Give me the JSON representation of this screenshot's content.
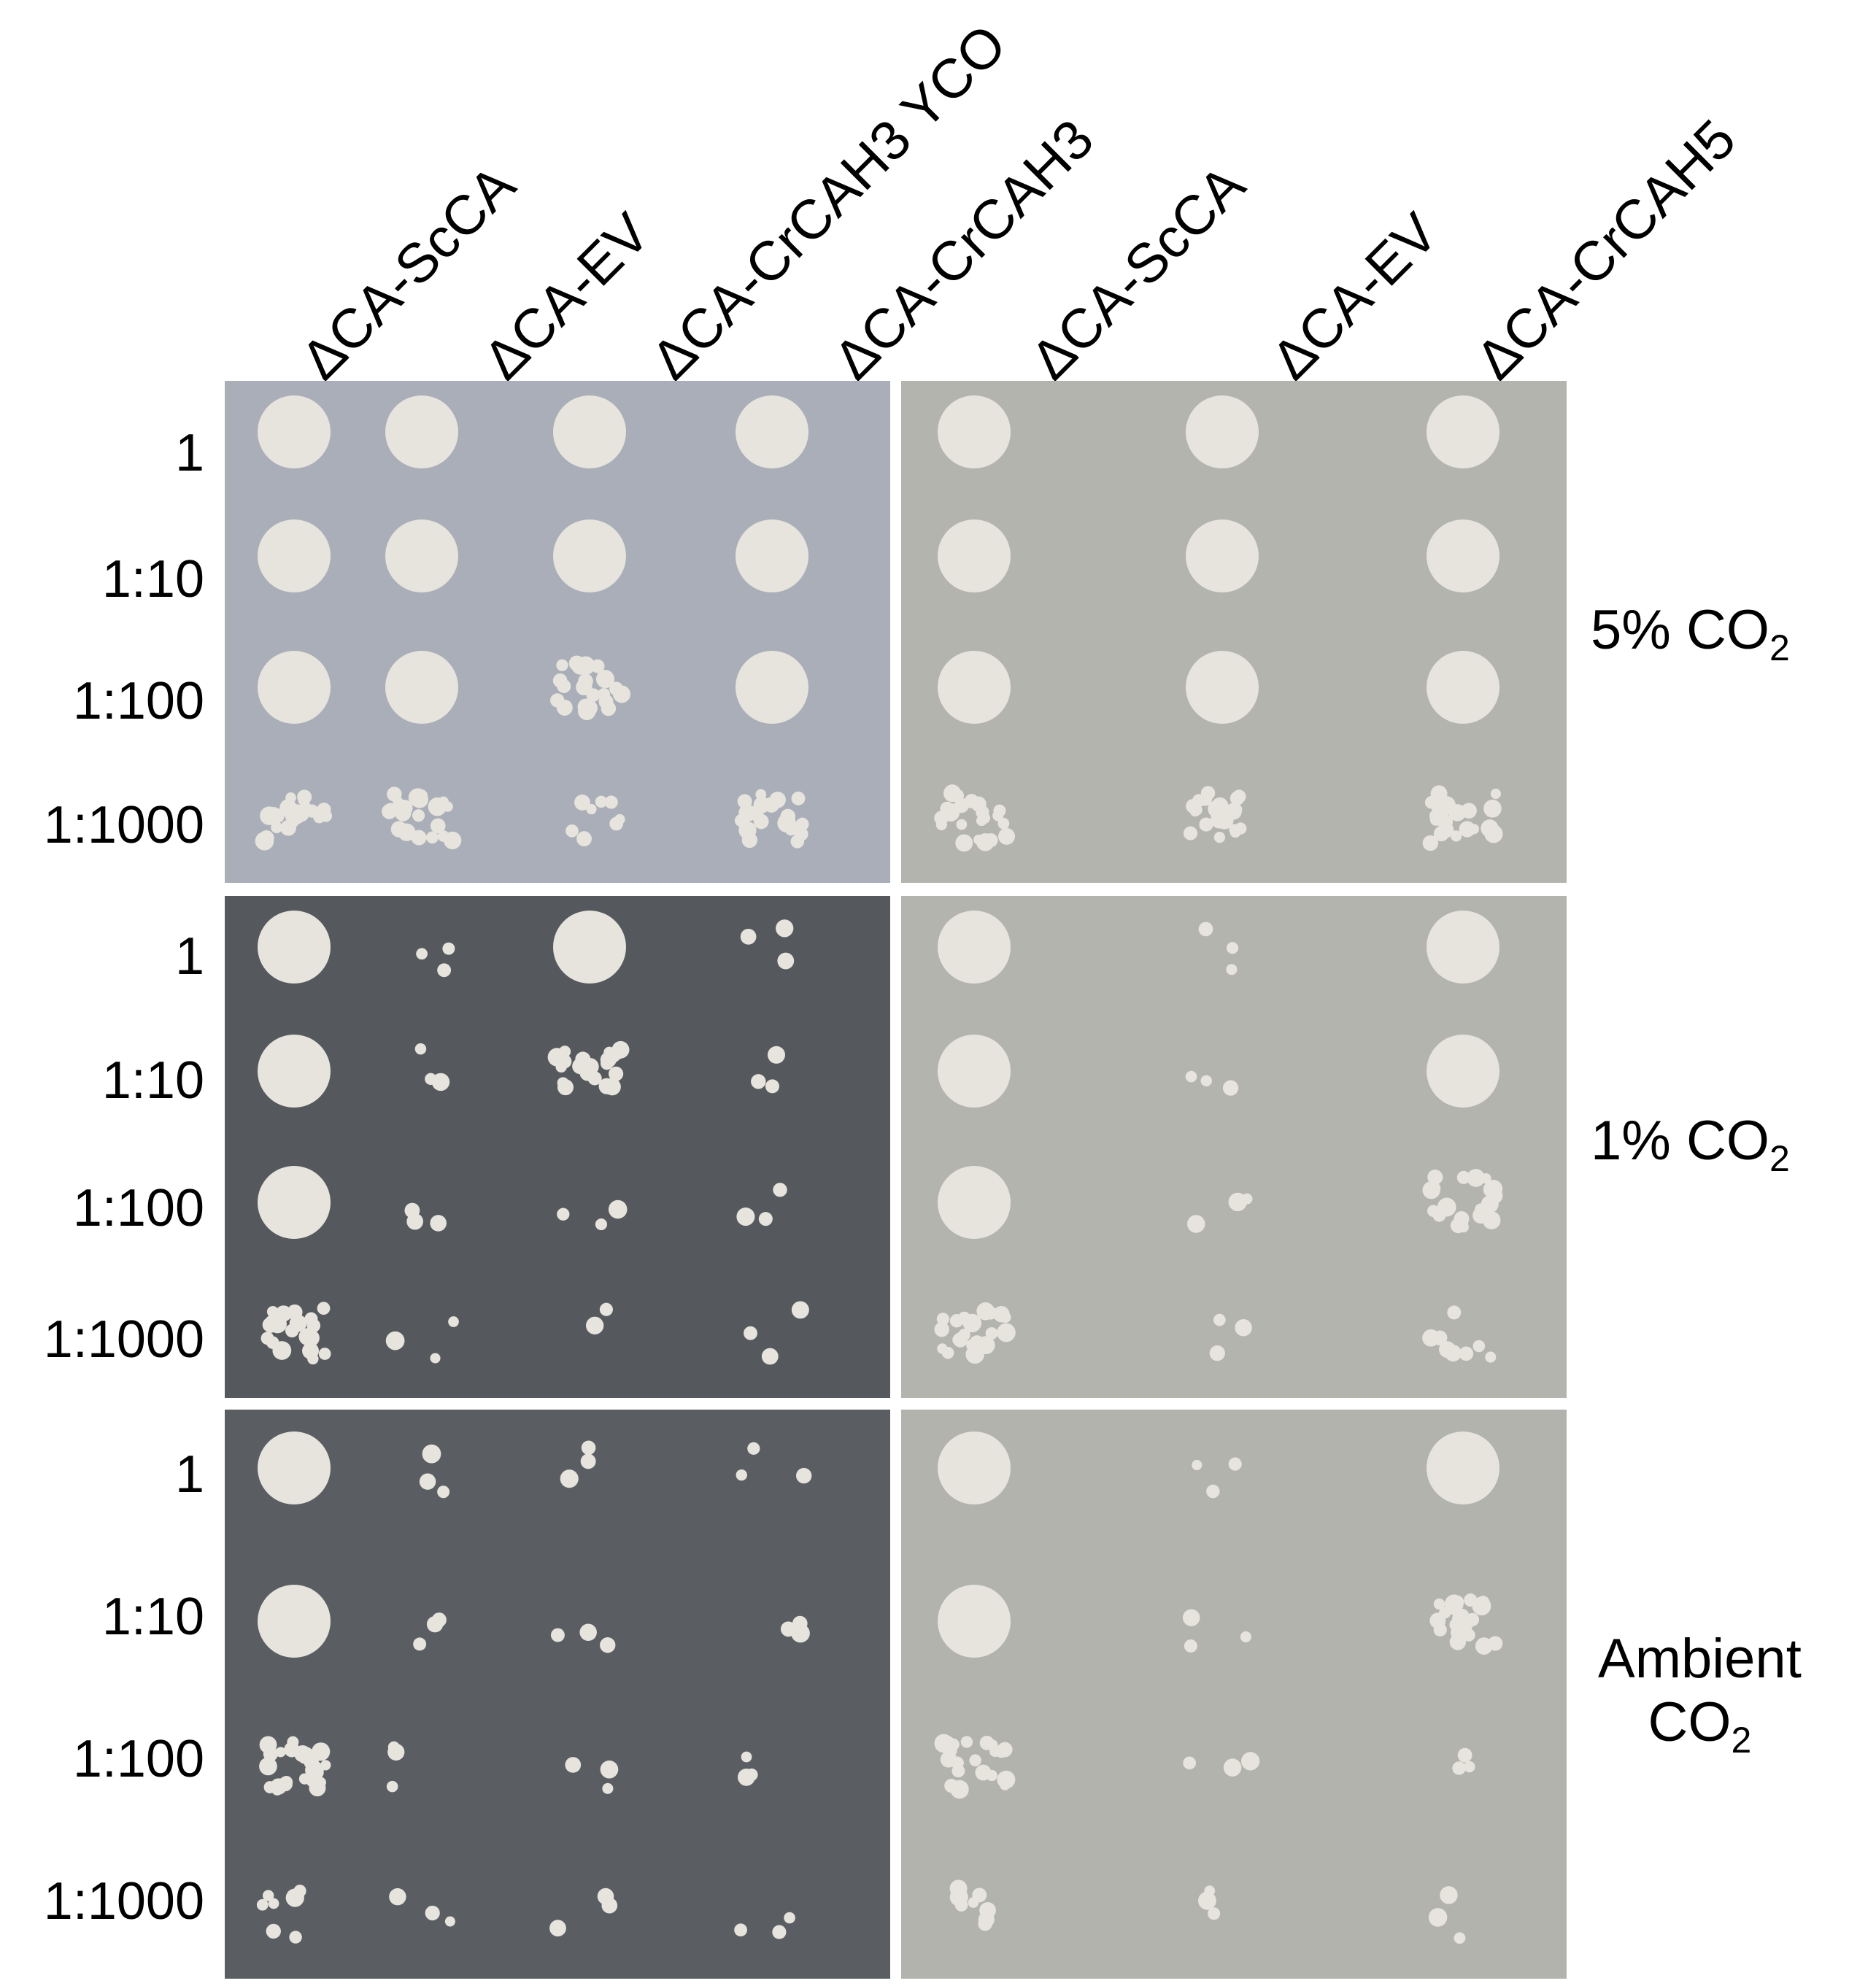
{
  "column_labels": [
    "ΔCA-ScCA",
    "ΔCA-EV",
    "ΔCA-CrCAH3 YCO",
    "ΔCA-CrCAH3",
    "ΔCA-ScCA",
    "ΔCA-EV",
    "ΔCA-CrCAH5"
  ],
  "dilutions": [
    "1",
    "1:10",
    "1:100",
    "1:1000"
  ],
  "conditions": [
    {
      "prefix": "5% CO",
      "sub": "2"
    },
    {
      "prefix": "1% CO",
      "sub": "2"
    },
    {
      "line1": "Ambient",
      "prefix": "CO",
      "sub": "2"
    }
  ],
  "colors": {
    "plate_light_blue": "#a9aeb8",
    "plate_dark": "#55585c",
    "plate_beige": "#b4b4ae",
    "colony": "#e6e4dc"
  },
  "growth_levels_note_free": [
    [
      [
        4,
        4,
        4,
        3
      ],
      [
        4,
        4,
        4,
        3
      ],
      [
        4,
        4,
        3,
        2
      ],
      [
        4,
        4,
        4,
        3
      ],
      [
        4,
        4,
        4,
        3
      ],
      [
        4,
        4,
        4,
        3
      ],
      [
        4,
        4,
        4,
        3
      ]
    ],
    [
      [
        4,
        4,
        4,
        3
      ],
      [
        0,
        0,
        0,
        0
      ],
      [
        4,
        3,
        1,
        1
      ],
      [
        0,
        0,
        0,
        0
      ],
      [
        4,
        4,
        4,
        3
      ],
      [
        0,
        0,
        0,
        0
      ],
      [
        4,
        4,
        3,
        2
      ]
    ],
    [
      [
        4,
        4,
        3,
        2
      ],
      [
        0,
        0,
        0,
        0
      ],
      [
        0,
        0,
        0,
        0
      ],
      [
        0,
        0,
        0,
        0
      ],
      [
        4,
        4,
        3,
        2
      ],
      [
        0,
        0,
        0,
        0
      ],
      [
        4,
        3,
        1,
        0
      ]
    ]
  ]
}
